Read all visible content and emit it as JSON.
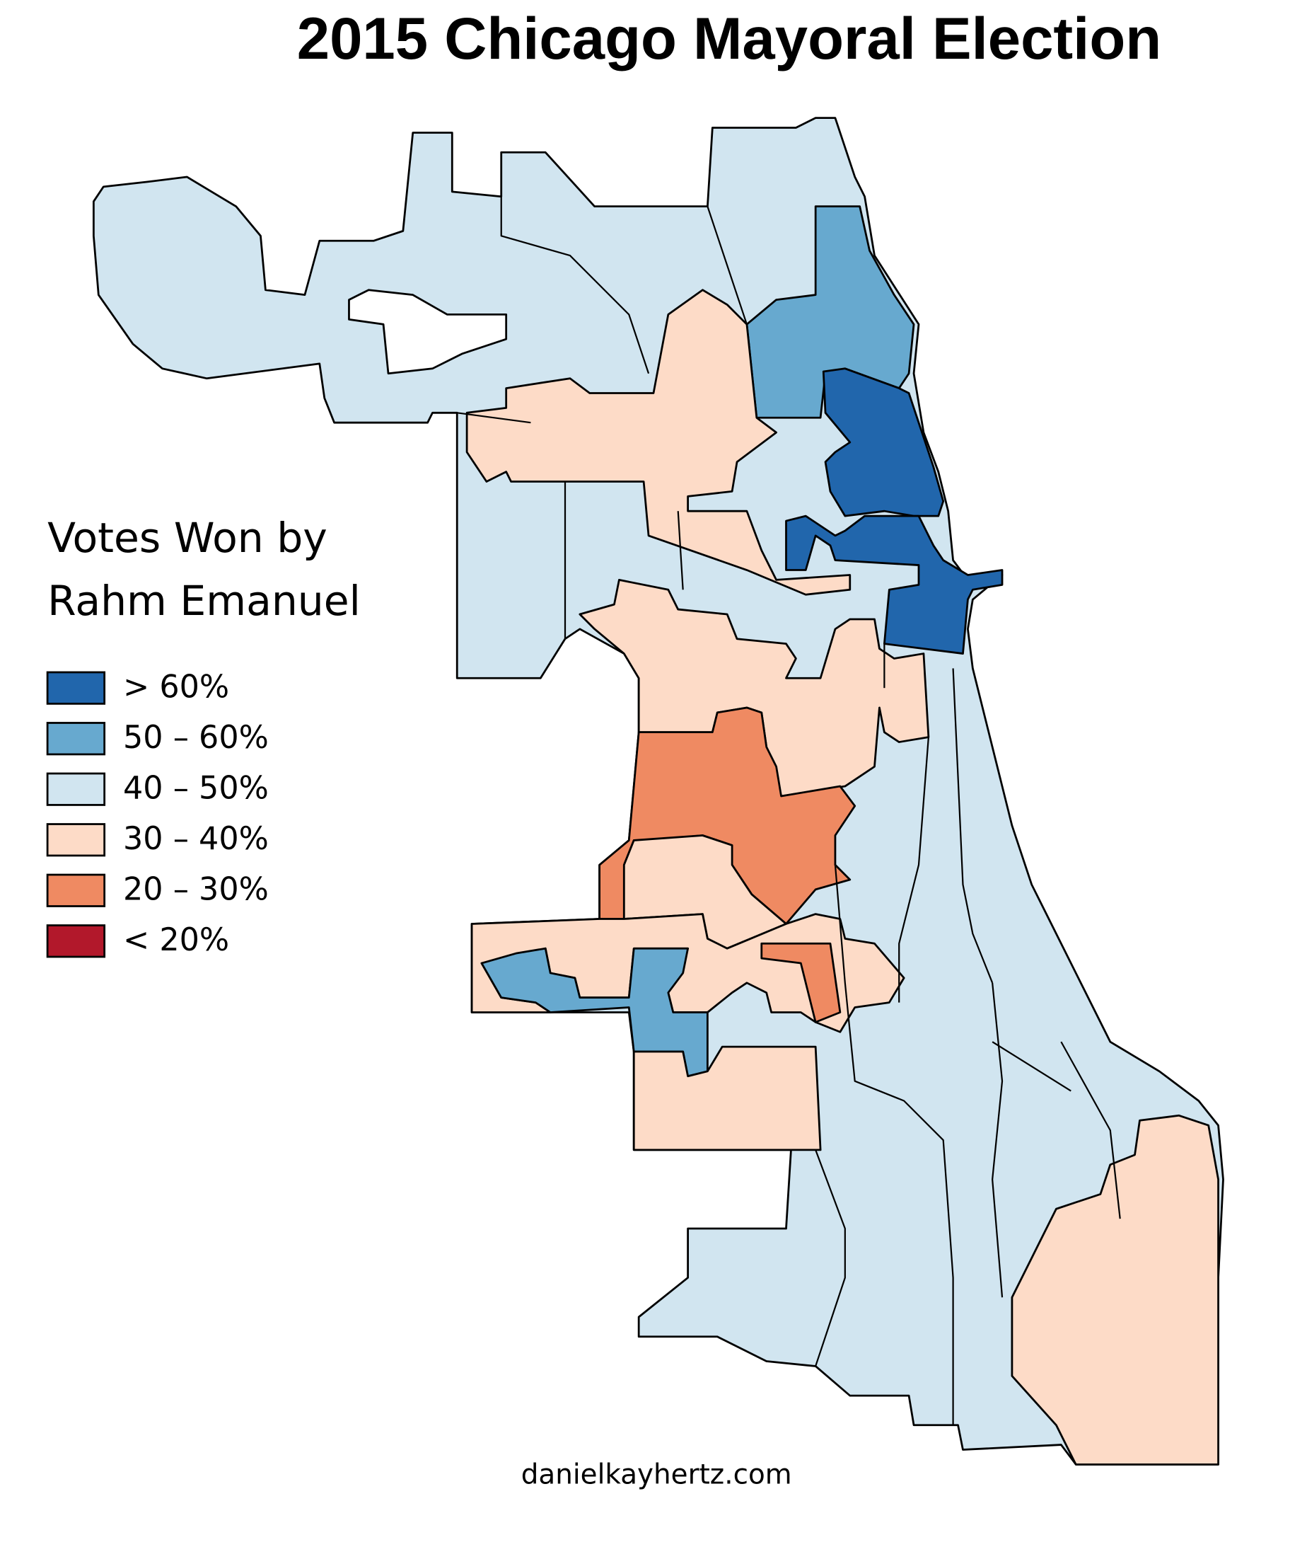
{
  "title": "2015 Chicago Mayoral Election",
  "legend": {
    "title": [
      "Votes Won by",
      "Rahm Emanuel"
    ],
    "items": [
      {
        "label": "> 60%",
        "color": "#2166ac"
      },
      {
        "label": "50 – 60%",
        "color": "#67a9cf"
      },
      {
        "label": "40 – 50%",
        "color": "#d1e5f0"
      },
      {
        "label": "30 – 40%",
        "color": "#fddbc7"
      },
      {
        "label": "20 – 30%",
        "color": "#ef8a62"
      },
      {
        "label": "< 20%",
        "color": "#b2182b"
      }
    ]
  },
  "credit": "danielkayhertz.com"
}
